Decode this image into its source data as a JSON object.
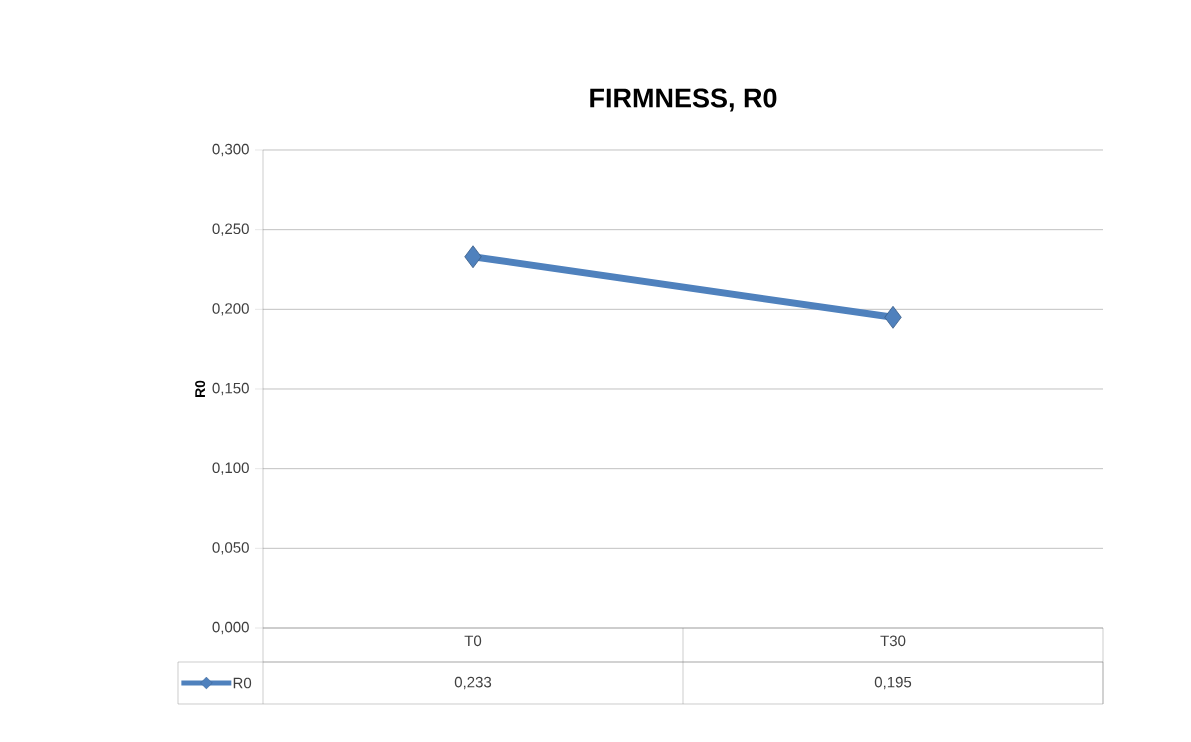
{
  "chart_data": {
    "type": "line",
    "title": "FIRMNESS, R0",
    "ylabel": "R0",
    "categories": [
      "T0",
      "T30"
    ],
    "series": [
      {
        "name": "R0",
        "color": "#4f81bd",
        "values": [
          0.233,
          0.195
        ],
        "value_labels": [
          "0,233",
          "0,195"
        ]
      }
    ],
    "ylim": [
      0,
      0.3
    ],
    "yticks": [
      {
        "value": 0,
        "label": "0,000"
      },
      {
        "value": 0.05,
        "label": "0,050"
      },
      {
        "value": 0.1,
        "label": "0,100"
      },
      {
        "value": 0.15,
        "label": "0,150"
      },
      {
        "value": 0.2,
        "label": "0,200"
      },
      {
        "value": 0.25,
        "label": "0,250"
      },
      {
        "value": 0.3,
        "label": "0,300"
      }
    ],
    "grid": "y",
    "legend": "bottom",
    "marker": "diamond",
    "line_style": "solid"
  }
}
